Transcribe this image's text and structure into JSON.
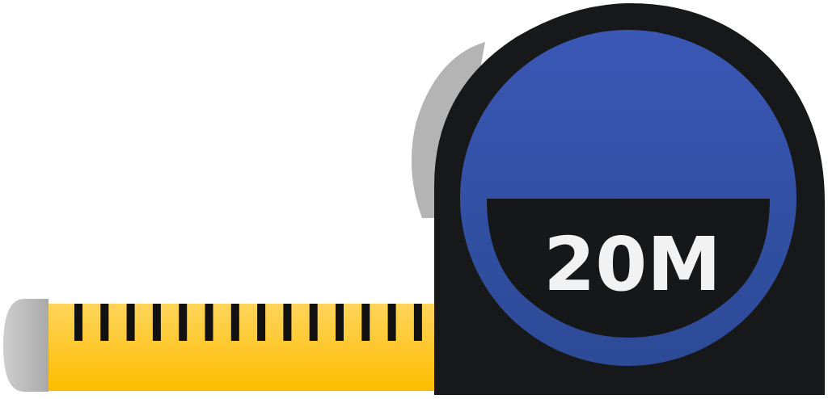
{
  "illustration": {
    "subject": "measuring-tape",
    "label": "20M",
    "tick_count": 15,
    "colors": {
      "background": "#ffffff",
      "tape_top": "#ffd45a",
      "tape_bottom": "#fdbd00",
      "tick": "#111111",
      "tape_hook": "#a9a9a9",
      "tape_hook_light": "#cfcfcf",
      "case_body": "#17181a",
      "case_clip": "#b4b4b4",
      "dial_top": "#3a57b5",
      "dial_bottom": "#2c4a95",
      "window": "#161719",
      "label_text": "#f2f2f2"
    }
  }
}
